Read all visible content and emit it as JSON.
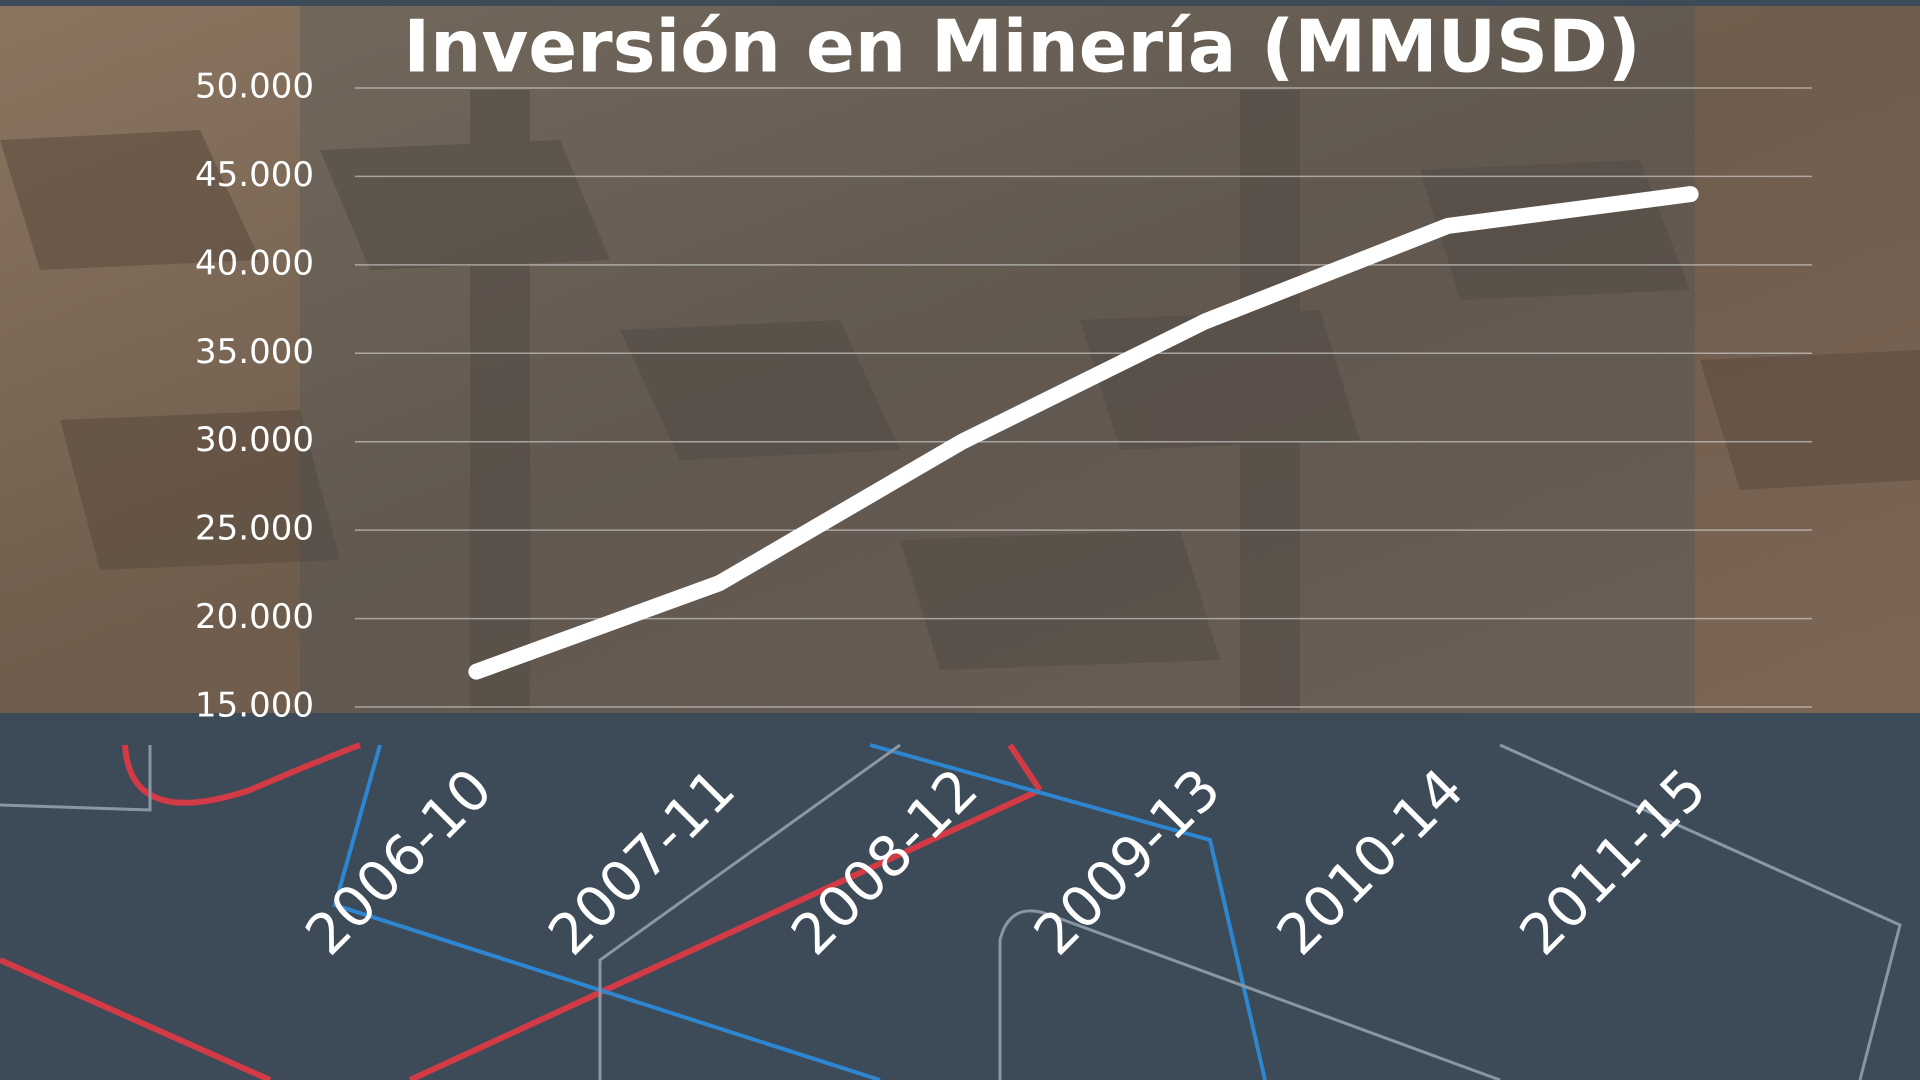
{
  "chart_data": {
    "type": "line",
    "title": "Inversión en Minería (MMUSD)",
    "categories": [
      "2006-10",
      "2007-11",
      "2008-12",
      "2009-13",
      "2010-14",
      "2011-15"
    ],
    "values": [
      17000,
      22000,
      30000,
      36800,
      42200,
      44000
    ],
    "color": "#ffffff",
    "ylim": [
      15000,
      50000
    ],
    "yticks": [
      {
        "value": 15000,
        "label": "15.000"
      },
      {
        "value": 20000,
        "label": "20.000"
      },
      {
        "value": 25000,
        "label": "25.000"
      },
      {
        "value": 30000,
        "label": "30.000"
      },
      {
        "value": 35000,
        "label": "35.000"
      },
      {
        "value": 40000,
        "label": "40.000"
      },
      {
        "value": 45000,
        "label": "45.000"
      },
      {
        "value": 50000,
        "label": "50.000"
      }
    ],
    "grid": true
  }
}
